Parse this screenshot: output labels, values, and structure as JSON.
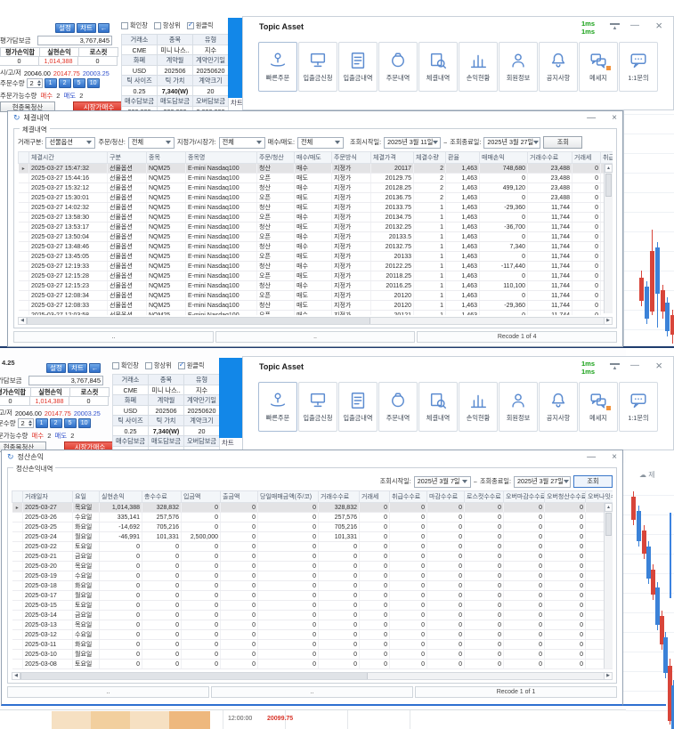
{
  "colors": {
    "accent_blue": "#2f6fc8",
    "desktop_blue": "#1287e8",
    "positive_red": "#e03428",
    "negative_blue": "#3050cc",
    "fee_orange": "#e8a23c",
    "latency_green": "#16a016",
    "red_candle": "#d8453a",
    "blue_candle": "#3b82d8"
  },
  "panel": {
    "order": {
      "settings_btn": "설정",
      "chart_btn": "차트",
      "back_btn": "←",
      "deposit_label": "평가담보금",
      "deposit_value": "3,767,845",
      "pl_headers": [
        "평가손익합",
        "실현손익",
        "로스컷"
      ],
      "pl_values": [
        "0",
        "1,014,388",
        "0"
      ],
      "sgj_label": "시/고/저",
      "sgj_values": [
        "20046.00",
        "20147.75",
        "20003.25"
      ],
      "qty_label": "주문수량",
      "qty_value": "2",
      "qty_presets": [
        "1",
        "2",
        "5",
        "10"
      ],
      "avail_label": "주문가능수량",
      "buy_label": "매수",
      "buy_qty": "2",
      "sell_label": "매도",
      "sell_qty": "2",
      "close_position_btn": "현종목청산",
      "market_buy_btn": "시장가매수"
    },
    "checkboxes": [
      {
        "label": "확인창",
        "checked": false
      },
      {
        "label": "항상위",
        "checked": false
      },
      {
        "label": "원클릭",
        "checked": true
      }
    ],
    "info_grid": [
      [
        "거래소",
        "종목",
        "유형"
      ],
      [
        "CME",
        "미니 나스..",
        "지수"
      ],
      [
        "화폐",
        "계약월",
        "계약만기일"
      ],
      [
        "USD",
        "202506",
        "20250620"
      ],
      [
        "틱 사이즈",
        "틱 가치",
        "계약크기"
      ],
      [
        "0.25",
        "7,340(W)",
        "20"
      ],
      [
        "매수담보금",
        "매도담보금",
        "오버담보금"
      ],
      [
        "300,000",
        "300,000",
        "2,000,000"
      ]
    ],
    "chart_tab": "차트",
    "topic": {
      "title": "Topic Asset",
      "latency": [
        "1ms",
        "1ms"
      ],
      "buttons": [
        {
          "label": "빠른주문",
          "icon": "quick-order-icon"
        },
        {
          "label": "입출금신청",
          "icon": "deposit-request-icon"
        },
        {
          "label": "입출금내역",
          "icon": "deposit-history-icon"
        },
        {
          "label": "주문내역",
          "icon": "order-history-icon"
        },
        {
          "label": "체결내역",
          "icon": "fills-icon"
        },
        {
          "label": "손익현황",
          "icon": "pnl-icon"
        },
        {
          "label": "회원정보",
          "icon": "member-icon"
        },
        {
          "label": "공지사항",
          "icon": "notice-bell-icon"
        },
        {
          "label": "메세지",
          "icon": "message-icon",
          "badge": true
        },
        {
          "label": "1:1문의",
          "icon": "inquiry-icon"
        }
      ]
    }
  },
  "fills": {
    "title": "체결내역",
    "group_title": "체결내역",
    "filters": [
      {
        "label": "거래구분:",
        "value": "선물옵션"
      },
      {
        "label": "주문/청산:",
        "value": "전체"
      },
      {
        "label": "지정가/시장가:",
        "value": "전체"
      },
      {
        "label": "매수/매도:",
        "value": "전체"
      }
    ],
    "date_from_label": "조회시작일:",
    "date_from": "2025년 3월 11일",
    "tilde": "~",
    "date_to_label": "조회종료일:",
    "date_to": "2025년 3월 27일",
    "search_btn": "조회",
    "columns": [
      "체결시간",
      "구분",
      "종목",
      "종목명",
      "주문/청산",
      "매수/매도",
      "주문방식",
      "체결가격",
      "체결수량",
      "환율",
      "매매손익",
      "거래수수료",
      "거래세",
      "취급수"
    ],
    "rows": [
      {
        "time": "2025-03-27 15:47:32",
        "type": "선물옵션",
        "code": "NQM25",
        "name": "E-mini Nasdaq100",
        "oc": "청산",
        "bs": "매수",
        "method": "지정가",
        "price": "20117",
        "qty": "2",
        "fx": "1,463",
        "pnl": "748,680",
        "fee": "23,488",
        "tax": "0"
      },
      {
        "time": "2025-03-27 15:44:16",
        "type": "선물옵션",
        "code": "NQM25",
        "name": "E-mini Nasdaq100",
        "oc": "오픈",
        "bs": "매도",
        "method": "지정가",
        "price": "20129.75",
        "qty": "2",
        "fx": "1,463",
        "pnl": "0",
        "fee": "23,488",
        "tax": "0"
      },
      {
        "time": "2025-03-27 15:32:12",
        "type": "선물옵션",
        "code": "NQM25",
        "name": "E-mini Nasdaq100",
        "oc": "청산",
        "bs": "매수",
        "method": "지정가",
        "price": "20128.25",
        "qty": "2",
        "fx": "1,463",
        "pnl": "499,120",
        "fee": "23,488",
        "tax": "0"
      },
      {
        "time": "2025-03-27 15:30:01",
        "type": "선물옵션",
        "code": "NQM25",
        "name": "E-mini Nasdaq100",
        "oc": "오픈",
        "bs": "매도",
        "method": "지정가",
        "price": "20136.75",
        "qty": "2",
        "fx": "1,463",
        "pnl": "0",
        "fee": "23,488",
        "tax": "0"
      },
      {
        "time": "2025-03-27 14:02:32",
        "type": "선물옵션",
        "code": "NQM25",
        "name": "E-mini Nasdaq100",
        "oc": "청산",
        "bs": "매도",
        "method": "지정가",
        "price": "20133.75",
        "qty": "1",
        "fx": "1,463",
        "pnl": "-29,360",
        "fee": "11,744",
        "tax": "0"
      },
      {
        "time": "2025-03-27 13:58:30",
        "type": "선물옵션",
        "code": "NQM25",
        "name": "E-mini Nasdaq100",
        "oc": "오픈",
        "bs": "매수",
        "method": "지정가",
        "price": "20134.75",
        "qty": "1",
        "fx": "1,463",
        "pnl": "0",
        "fee": "11,744",
        "tax": "0"
      },
      {
        "time": "2025-03-27 13:53:17",
        "type": "선물옵션",
        "code": "NQM25",
        "name": "E-mini Nasdaq100",
        "oc": "청산",
        "bs": "매도",
        "method": "지정가",
        "price": "20132.25",
        "qty": "1",
        "fx": "1,463",
        "pnl": "-36,700",
        "fee": "11,744",
        "tax": "0"
      },
      {
        "time": "2025-03-27 13:50:04",
        "type": "선물옵션",
        "code": "NQM25",
        "name": "E-mini Nasdaq100",
        "oc": "오픈",
        "bs": "매수",
        "method": "지정가",
        "price": "20133.5",
        "qty": "1",
        "fx": "1,463",
        "pnl": "0",
        "fee": "11,744",
        "tax": "0"
      },
      {
        "time": "2025-03-27 13:48:46",
        "type": "선물옵션",
        "code": "NQM25",
        "name": "E-mini Nasdaq100",
        "oc": "청산",
        "bs": "매수",
        "method": "지정가",
        "price": "20132.75",
        "qty": "1",
        "fx": "1,463",
        "pnl": "7,340",
        "fee": "11,744",
        "tax": "0"
      },
      {
        "time": "2025-03-27 13:45:05",
        "type": "선물옵션",
        "code": "NQM25",
        "name": "E-mini Nasdaq100",
        "oc": "오픈",
        "bs": "매도",
        "method": "지정가",
        "price": "20133",
        "qty": "1",
        "fx": "1,463",
        "pnl": "0",
        "fee": "11,744",
        "tax": "0"
      },
      {
        "time": "2025-03-27 12:19:33",
        "type": "선물옵션",
        "code": "NQM25",
        "name": "E-mini Nasdaq100",
        "oc": "청산",
        "bs": "매수",
        "method": "지정가",
        "price": "20122.25",
        "qty": "1",
        "fx": "1,463",
        "pnl": "-117,440",
        "fee": "11,744",
        "tax": "0"
      },
      {
        "time": "2025-03-27 12:15:28",
        "type": "선물옵션",
        "code": "NQM25",
        "name": "E-mini Nasdaq100",
        "oc": "오픈",
        "bs": "매도",
        "method": "지정가",
        "price": "20118.25",
        "qty": "1",
        "fx": "1,463",
        "pnl": "0",
        "fee": "11,744",
        "tax": "0"
      },
      {
        "time": "2025-03-27 12:15:23",
        "type": "선물옵션",
        "code": "NQM25",
        "name": "E-mini Nasdaq100",
        "oc": "청산",
        "bs": "매수",
        "method": "지정가",
        "price": "20116.25",
        "qty": "1",
        "fx": "1,463",
        "pnl": "110,100",
        "fee": "11,744",
        "tax": "0"
      },
      {
        "time": "2025-03-27 12:08:34",
        "type": "선물옵션",
        "code": "NQM25",
        "name": "E-mini Nasdaq100",
        "oc": "오픈",
        "bs": "매도",
        "method": "지정가",
        "price": "20120",
        "qty": "1",
        "fx": "1,463",
        "pnl": "0",
        "fee": "11,744",
        "tax": "0"
      },
      {
        "time": "2025-03-27 12:08:33",
        "type": "선물옵션",
        "code": "NQM25",
        "name": "E-mini Nasdaq100",
        "oc": "청산",
        "bs": "매도",
        "method": "지정가",
        "price": "20120",
        "qty": "1",
        "fx": "1,463",
        "pnl": "-29,360",
        "fee": "11,744",
        "tax": "0"
      },
      {
        "time": "2025-03-27 12:03:58",
        "type": "선물옵션",
        "code": "NQM25",
        "name": "E-mini Nasdaq100",
        "oc": "오픈",
        "bs": "매수",
        "method": "지정가",
        "price": "20121",
        "qty": "1",
        "fx": "1,463",
        "pnl": "0",
        "fee": "11,744",
        "tax": "0"
      },
      {
        "time": "2025-03-27 12:00:56",
        "type": "선물옵션",
        "code": "NQM25",
        "name": "E-mini Nasdaq100",
        "oc": "청산",
        "bs": "매수",
        "method": "지정가",
        "price": "20122",
        "qty": "1",
        "fx": "1,463",
        "pnl": "-176,160",
        "fee": "11,744",
        "tax": "0"
      }
    ],
    "status_cells": [
      "..",
      ".."
    ],
    "record_label": "Recode 1 of 4"
  },
  "pnl": {
    "title": "정산손익",
    "group_title": "정산손익내역",
    "date_from_label": "조회시작일:",
    "date_from": "2025년 3월 7일",
    "tilde": "~",
    "date_to_label": "조회종료일:",
    "date_to": "2025년 3월 27일",
    "search_btn": "조회",
    "columns": [
      "거래일자",
      "요일",
      "실현손익",
      "총수수료",
      "입금액",
      "출금액",
      "당일매매금액(주/코)",
      "거래수수료",
      "거래세",
      "취급수수료",
      "마감수수료",
      "로스컷수수료",
      "오버마감수수료",
      "오버청산수수료",
      "오버나잇수"
    ],
    "rows": [
      {
        "date": "2025-03-27",
        "day": "목요일",
        "realized": "1,014,388",
        "total_fee": "328,832",
        "deposit": "0",
        "withdraw": "0",
        "day_amt": "0",
        "trade_fee": "328,832",
        "tax": "0",
        "handling": "0",
        "closing": "0",
        "losscut": "0",
        "over_close": "0",
        "over_settle": "0",
        "overnight": "0"
      },
      {
        "date": "2025-03-26",
        "day": "수요일",
        "realized": "335,141",
        "total_fee": "257,576",
        "deposit": "0",
        "withdraw": "0",
        "day_amt": "0",
        "trade_fee": "257,576",
        "tax": "0",
        "handling": "0",
        "closing": "0",
        "losscut": "0",
        "over_close": "0",
        "over_settle": "0",
        "overnight": "0"
      },
      {
        "date": "2025-03-25",
        "day": "화요일",
        "realized": "-14,692",
        "total_fee": "705,216",
        "deposit": "0",
        "withdraw": "0",
        "day_amt": "0",
        "trade_fee": "705,216",
        "tax": "0",
        "handling": "0",
        "closing": "0",
        "losscut": "0",
        "over_close": "0",
        "over_settle": "0",
        "overnight": "0"
      },
      {
        "date": "2025-03-24",
        "day": "월요일",
        "realized": "-46,991",
        "total_fee": "101,331",
        "deposit": "2,500,000",
        "withdraw": "0",
        "day_amt": "0",
        "trade_fee": "101,331",
        "tax": "0",
        "handling": "0",
        "closing": "0",
        "losscut": "0",
        "over_close": "0",
        "over_settle": "0",
        "overnight": "0"
      },
      {
        "date": "2025-03-22",
        "day": "토요일",
        "realized": "0",
        "total_fee": "0",
        "deposit": "0",
        "withdraw": "0",
        "day_amt": "0",
        "trade_fee": "0",
        "tax": "0",
        "handling": "0",
        "closing": "0",
        "losscut": "0",
        "over_close": "0",
        "over_settle": "0",
        "overnight": "0"
      },
      {
        "date": "2025-03-21",
        "day": "금요일",
        "realized": "0",
        "total_fee": "0",
        "deposit": "0",
        "withdraw": "0",
        "day_amt": "0",
        "trade_fee": "0",
        "tax": "0",
        "handling": "0",
        "closing": "0",
        "losscut": "0",
        "over_close": "0",
        "over_settle": "0",
        "overnight": "0"
      },
      {
        "date": "2025-03-20",
        "day": "목요일",
        "realized": "0",
        "total_fee": "0",
        "deposit": "0",
        "withdraw": "0",
        "day_amt": "0",
        "trade_fee": "0",
        "tax": "0",
        "handling": "0",
        "closing": "0",
        "losscut": "0",
        "over_close": "0",
        "over_settle": "0",
        "overnight": "0"
      },
      {
        "date": "2025-03-19",
        "day": "수요일",
        "realized": "0",
        "total_fee": "0",
        "deposit": "0",
        "withdraw": "0",
        "day_amt": "0",
        "trade_fee": "0",
        "tax": "0",
        "handling": "0",
        "closing": "0",
        "losscut": "0",
        "over_close": "0",
        "over_settle": "0",
        "overnight": "0"
      },
      {
        "date": "2025-03-18",
        "day": "화요일",
        "realized": "0",
        "total_fee": "0",
        "deposit": "0",
        "withdraw": "0",
        "day_amt": "0",
        "trade_fee": "0",
        "tax": "0",
        "handling": "0",
        "closing": "0",
        "losscut": "0",
        "over_close": "0",
        "over_settle": "0",
        "overnight": "0"
      },
      {
        "date": "2025-03-17",
        "day": "월요일",
        "realized": "0",
        "total_fee": "0",
        "deposit": "0",
        "withdraw": "0",
        "day_amt": "0",
        "trade_fee": "0",
        "tax": "0",
        "handling": "0",
        "closing": "0",
        "losscut": "0",
        "over_close": "0",
        "over_settle": "0",
        "overnight": "0"
      },
      {
        "date": "2025-03-15",
        "day": "토요일",
        "realized": "0",
        "total_fee": "0",
        "deposit": "0",
        "withdraw": "0",
        "day_amt": "0",
        "trade_fee": "0",
        "tax": "0",
        "handling": "0",
        "closing": "0",
        "losscut": "0",
        "over_close": "0",
        "over_settle": "0",
        "overnight": "0"
      },
      {
        "date": "2025-03-14",
        "day": "금요일",
        "realized": "0",
        "total_fee": "0",
        "deposit": "0",
        "withdraw": "0",
        "day_amt": "0",
        "trade_fee": "0",
        "tax": "0",
        "handling": "0",
        "closing": "0",
        "losscut": "0",
        "over_close": "0",
        "over_settle": "0",
        "overnight": "0"
      },
      {
        "date": "2025-03-13",
        "day": "목요일",
        "realized": "0",
        "total_fee": "0",
        "deposit": "0",
        "withdraw": "0",
        "day_amt": "0",
        "trade_fee": "0",
        "tax": "0",
        "handling": "0",
        "closing": "0",
        "losscut": "0",
        "over_close": "0",
        "over_settle": "0",
        "overnight": "0"
      },
      {
        "date": "2025-03-12",
        "day": "수요일",
        "realized": "0",
        "total_fee": "0",
        "deposit": "0",
        "withdraw": "0",
        "day_amt": "0",
        "trade_fee": "0",
        "tax": "0",
        "handling": "0",
        "closing": "0",
        "losscut": "0",
        "over_close": "0",
        "over_settle": "0",
        "overnight": "0"
      },
      {
        "date": "2025-03-11",
        "day": "화요일",
        "realized": "0",
        "total_fee": "0",
        "deposit": "0",
        "withdraw": "0",
        "day_amt": "0",
        "trade_fee": "0",
        "tax": "0",
        "handling": "0",
        "closing": "0",
        "losscut": "0",
        "over_close": "0",
        "over_settle": "0",
        "overnight": "0"
      },
      {
        "date": "2025-03-10",
        "day": "월요일",
        "realized": "0",
        "total_fee": "0",
        "deposit": "0",
        "withdraw": "0",
        "day_amt": "0",
        "trade_fee": "0",
        "tax": "0",
        "handling": "0",
        "closing": "0",
        "losscut": "0",
        "over_close": "0",
        "over_settle": "0",
        "overnight": "0"
      },
      {
        "date": "2025-03-08",
        "day": "토요일",
        "realized": "0",
        "total_fee": "0",
        "deposit": "0",
        "withdraw": "0",
        "day_amt": "0",
        "trade_fee": "0",
        "tax": "0",
        "handling": "0",
        "closing": "0",
        "losscut": "0",
        "over_close": "0",
        "over_settle": "0",
        "overnight": "0"
      }
    ],
    "status_cells": [
      "..",
      ".."
    ],
    "record_label": "Recode 1 of 1"
  },
  "background": {
    "cloud_label": "제",
    "junction_fragment": "4.25",
    "bottom_fragment": {
      "time": "12:00:00",
      "price": "20099.75"
    }
  }
}
